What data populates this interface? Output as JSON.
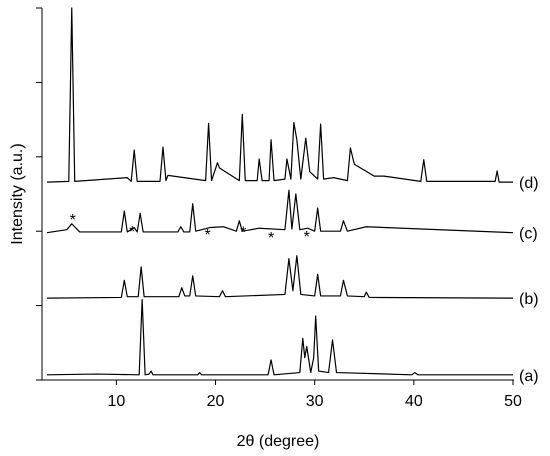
{
  "chart_data": {
    "type": "line",
    "x_label": "2θ (degree)",
    "y_label": "Intensity (a.u.)",
    "xlim": [
      2.5,
      50
    ],
    "xticks": [
      10,
      20,
      30,
      40,
      50
    ],
    "ylim": [
      0,
      5
    ],
    "yticks": [
      0,
      1,
      2,
      3,
      4,
      5
    ],
    "series": [
      {
        "name": "(a)",
        "color": "#000000",
        "x": [
          3,
          8,
          12.3,
          12.6,
          12.9,
          13.3,
          13.5,
          13.7,
          18.2,
          18.4,
          18.6,
          25.3,
          25.6,
          25.9,
          28.5,
          28.8,
          29.0,
          29.2,
          29.6,
          29.9,
          30.1,
          30.4,
          31.4,
          31.8,
          32.2,
          39.8,
          40.1,
          40.4,
          50
        ],
        "values": [
          0.07,
          0.08,
          0.07,
          1.08,
          0.07,
          0.08,
          0.12,
          0.07,
          0.07,
          0.1,
          0.07,
          0.07,
          0.27,
          0.07,
          0.1,
          0.56,
          0.3,
          0.45,
          0.1,
          0.3,
          0.86,
          0.12,
          0.1,
          0.54,
          0.1,
          0.07,
          0.1,
          0.07,
          0.07
        ]
      },
      {
        "name": "(b)",
        "color": "#000000",
        "x": [
          3,
          10.5,
          10.8,
          11.1,
          12.2,
          12.5,
          12.8,
          16.3,
          16.6,
          16.9,
          17.4,
          17.7,
          18.0,
          20.4,
          20.7,
          21.0,
          27.0,
          27.4,
          27.8,
          28.2,
          28.6,
          30.0,
          30.3,
          30.6,
          32.6,
          32.9,
          33.3,
          35.0,
          35.2,
          35.5,
          50
        ],
        "values": [
          1.1,
          1.11,
          1.34,
          1.12,
          1.12,
          1.52,
          1.12,
          1.12,
          1.24,
          1.13,
          1.13,
          1.4,
          1.13,
          1.12,
          1.2,
          1.12,
          1.15,
          1.63,
          1.2,
          1.67,
          1.15,
          1.13,
          1.42,
          1.13,
          1.13,
          1.34,
          1.13,
          1.12,
          1.18,
          1.11,
          1.1
        ]
      },
      {
        "name": "(c)",
        "color": "#000000",
        "x": [
          3,
          5.0,
          5.5,
          6.3,
          10.5,
          10.8,
          11.1,
          11.8,
          12.1,
          12.4,
          12.7,
          16.2,
          16.5,
          16.8,
          17.4,
          17.7,
          18.0,
          19.5,
          20.8,
          22.1,
          22.4,
          22.7,
          24.4,
          27.0,
          27.4,
          27.7,
          28.1,
          28.5,
          29.3,
          30.0,
          30.3,
          30.6,
          32.6,
          32.9,
          33.3,
          35.2,
          50
        ],
        "values": [
          1.98,
          2.02,
          2.1,
          1.99,
          1.99,
          2.27,
          1.99,
          2.05,
          1.99,
          2.24,
          1.99,
          1.99,
          2.06,
          1.99,
          1.99,
          2.37,
          2.0,
          2.05,
          2.06,
          2.0,
          2.14,
          2.0,
          2.04,
          2.02,
          2.55,
          2.03,
          2.5,
          2.02,
          2.04,
          2.0,
          2.31,
          2.0,
          2.0,
          2.14,
          2.0,
          2.06,
          1.98
        ]
      },
      {
        "name": "(d)",
        "color": "#000000",
        "x": [
          3,
          5.2,
          5.5,
          5.8,
          11.1,
          11.5,
          11.8,
          12.1,
          14.4,
          14.7,
          15.0,
          15.2,
          19.0,
          19.3,
          19.6,
          20.2,
          20.4,
          22.4,
          22.7,
          23.0,
          24.2,
          24.4,
          24.7,
          25.4,
          25.6,
          25.9,
          27.0,
          27.2,
          27.6,
          27.9,
          28.2,
          28.6,
          29.1,
          29.5,
          30.3,
          30.6,
          30.9,
          31.9,
          33.3,
          33.6,
          34.0,
          36.0,
          37.0,
          40.7,
          41.0,
          41.3,
          48.2,
          48.4,
          48.6,
          50
        ],
        "values": [
          2.66,
          2.67,
          5.0,
          2.67,
          2.72,
          2.67,
          3.09,
          2.67,
          2.67,
          3.13,
          2.68,
          2.75,
          2.68,
          3.45,
          2.68,
          2.92,
          2.85,
          2.68,
          3.57,
          2.68,
          2.68,
          2.97,
          2.68,
          2.68,
          3.23,
          2.68,
          2.7,
          2.97,
          2.7,
          3.46,
          3.23,
          2.7,
          3.25,
          2.8,
          2.7,
          3.44,
          2.7,
          2.72,
          2.68,
          3.12,
          2.9,
          2.74,
          2.74,
          2.67,
          2.96,
          2.67,
          2.67,
          2.81,
          2.66,
          2.66
        ]
      }
    ],
    "annotations": [
      {
        "text": "*",
        "x": 5.6,
        "y": 2.19
      },
      {
        "text": "*",
        "x": 11.6,
        "y": 2.03
      },
      {
        "text": "*",
        "x": 19.2,
        "y": 1.99
      },
      {
        "text": "*",
        "x": 22.8,
        "y": 2.02
      },
      {
        "text": "*",
        "x": 25.6,
        "y": 1.95
      },
      {
        "text": "*",
        "x": 29.2,
        "y": 1.96
      }
    ]
  }
}
